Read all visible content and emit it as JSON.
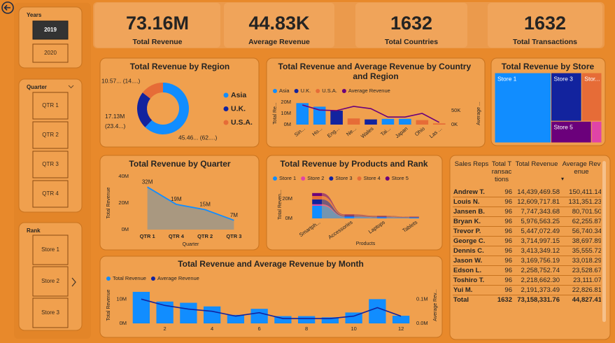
{
  "slicers": [
    {
      "title": "Years",
      "items": [
        "2019",
        "2020"
      ],
      "selected": "2019"
    },
    {
      "title": "Quarter",
      "items": [
        "QTR 1",
        "QTR 2",
        "QTR 3",
        "QTR 4"
      ]
    },
    {
      "title": "Rank",
      "items": [
        "Store 1",
        "Store 2",
        "Store 3"
      ]
    }
  ],
  "kpis": [
    {
      "value": "73.16M",
      "label": "Total Revenue"
    },
    {
      "value": "44.83K",
      "label": "Average Revenue"
    },
    {
      "value": "1632",
      "label": "Total Countries"
    },
    {
      "value": "1632",
      "label": "Total Transactions"
    }
  ],
  "chart_data": [
    {
      "type": "pie",
      "title": "Total Revenue by Region",
      "categories": [
        "Asia",
        "U.K.",
        "U.S.A."
      ],
      "values": [
        45.46,
        17.13,
        10.57
      ],
      "value_labels": [
        "45.46... (62....)",
        "17.13M (23.4...)",
        "10.57... (14....)"
      ],
      "colors": [
        "#118dff",
        "#12239e",
        "#e66c37"
      ],
      "donut": true,
      "legend": "right"
    },
    {
      "type": "combo",
      "title": "Total Revenue and Average Revenue by Country and Region",
      "categories": [
        "Sin...",
        "Ho...",
        "Eng...",
        "Ne...",
        "Wales",
        "Tai...",
        "Japan",
        "Ohio",
        "Las ..."
      ],
      "series": [
        {
          "name": "Asia",
          "color": "#118dff",
          "values": [
            19.2,
            16,
            null,
            null,
            null,
            5.1,
            5.16,
            null,
            null
          ]
        },
        {
          "name": "U.K.",
          "color": "#12239e",
          "values": [
            null,
            null,
            12.5,
            null,
            4.63,
            null,
            null,
            null,
            null
          ]
        },
        {
          "name": "U.S.A.",
          "color": "#e66c37",
          "values": [
            null,
            null,
            null,
            5.5,
            null,
            null,
            null,
            4,
            1.07
          ]
        },
        {
          "name": "Average Revenue",
          "color": "#6b007b",
          "values": [
            70,
            52,
            50,
            65,
            57,
            27,
            27,
            40,
            8
          ],
          "axis": "y2"
        }
      ],
      "ylim": [
        0,
        20
      ],
      "yticks": [
        {
          "value": 0,
          "label": "0M"
        },
        {
          "value": 10,
          "label": "10M"
        },
        {
          "value": 20,
          "label": "20M"
        }
      ],
      "y2lim": [
        0,
        80
      ],
      "y2ticks": [
        {
          "value": 0,
          "label": "0K"
        },
        {
          "value": 50,
          "label": "50K"
        }
      ],
      "y_label": "Total Re...",
      "y2_label": "Average ...",
      "legend": "top"
    },
    {
      "type": "treemap",
      "title": "Total Revenue by Store",
      "categories": [
        "Store 1",
        "Store 3",
        "Stor...",
        "Store 5",
        null
      ],
      "values": [
        38.5,
        14.5,
        9.5,
        8.5,
        2.16
      ],
      "colors": [
        "#118dff",
        "#12239e",
        "#e66c37",
        "#6b007b",
        "#e044a7"
      ]
    },
    {
      "type": "area",
      "title": "Total Revenue by Quarter",
      "categories": [
        "QTR 1",
        "QTR 4",
        "QTR 2",
        "QTR 3"
      ],
      "values": [
        32,
        19,
        15,
        7
      ],
      "value_labels": [
        "32M",
        "19M",
        "15M",
        "7M"
      ],
      "color": "#118dff",
      "fill": "#9c968a",
      "ylim": [
        0,
        40
      ],
      "yticks": [
        {
          "value": 0,
          "label": "0M"
        },
        {
          "value": 20,
          "label": "20M"
        },
        {
          "value": 40,
          "label": "40M"
        }
      ],
      "x_label": "Quarter",
      "y_label": "Total Revenue"
    },
    {
      "type": "ribbon",
      "title": "Total Revenue by Products and Rank",
      "categories": [
        "Smartph...",
        "Accessories",
        "Laptops",
        "Tablets"
      ],
      "series": [
        {
          "name": "Store 1",
          "color": "#118dff",
          "values": [
            13,
            1.8,
            1.1,
            0.8
          ]
        },
        {
          "name": "Store 2",
          "color": "#e044a7",
          "values": [
            1.5,
            0.3,
            0.2,
            0.1
          ]
        },
        {
          "name": "Store 3",
          "color": "#12239e",
          "values": [
            5,
            0.8,
            0.5,
            0.4
          ]
        },
        {
          "name": "Store 4",
          "color": "#e66c37",
          "values": [
            3.5,
            0.6,
            0.4,
            0.3
          ]
        },
        {
          "name": "Store 5",
          "color": "#6b007b",
          "values": [
            3,
            0.5,
            0.3,
            0.2
          ]
        }
      ],
      "ylim": [
        0,
        28
      ],
      "yticks": [
        {
          "value": 0,
          "label": "0M"
        },
        {
          "value": 20,
          "label": "20M"
        }
      ],
      "x_label": "Products",
      "y_label": "Total Reven...",
      "legend": "top"
    },
    {
      "type": "combo",
      "title": "Total Revenue and Average Revenue by Month",
      "x": [
        1,
        2,
        3,
        4,
        5,
        6,
        7,
        8,
        9,
        10,
        11,
        12
      ],
      "xlim": [
        0.5,
        12.5
      ],
      "xticks": [
        2,
        4,
        6,
        8,
        10,
        12
      ],
      "series": [
        {
          "name": "Total Revenue",
          "color": "#118dff",
          "values": [
            13,
            9,
            8.5,
            7,
            3.5,
            6,
            3,
            3,
            2.5,
            4.5,
            10,
            3.16
          ]
        },
        {
          "name": "Average Revenue",
          "color": "#12239e",
          "values": [
            0.1,
            0.074,
            0.059,
            0.05,
            0.03,
            0.044,
            0.02,
            0.02,
            0.02,
            0.03,
            0.065,
            0.03
          ],
          "axis": "y2"
        }
      ],
      "ylim": [
        0,
        15
      ],
      "yticks": [
        {
          "value": 0,
          "label": "0M"
        },
        {
          "value": 10,
          "label": "10M"
        }
      ],
      "y2lim": [
        0,
        0.15
      ],
      "y2ticks": [
        {
          "value": 0,
          "label": "0.0M"
        },
        {
          "value": 0.1,
          "label": "0.1M"
        }
      ],
      "y_label": "Total Revenue",
      "y2_label": "Average Rev...",
      "legend": "top"
    }
  ],
  "table": {
    "columns": [
      "Sales Reps",
      "Total Transactions",
      "Total Revenue",
      "Average Revenue"
    ],
    "rows": [
      [
        "Andrew T.",
        "96",
        "14,439,469.58",
        "150,411.14"
      ],
      [
        "Louis N.",
        "96",
        "12,609,717.81",
        "131,351.23"
      ],
      [
        "Jansen B.",
        "96",
        "7,747,343.68",
        "80,701.50"
      ],
      [
        "Bryan K.",
        "96",
        "5,976,563.25",
        "62,255.87"
      ],
      [
        "Trevor P.",
        "96",
        "5,447,072.49",
        "56,740.34"
      ],
      [
        "George C.",
        "96",
        "3,714,997.15",
        "38,697.89"
      ],
      [
        "Dennis C.",
        "96",
        "3,413,349.12",
        "35,555.72"
      ],
      [
        "Jason W.",
        "96",
        "3,169,756.19",
        "33,018.29"
      ],
      [
        "Edson L.",
        "96",
        "2,258,752.74",
        "23,528.67"
      ],
      [
        "Toshiro T.",
        "96",
        "2,218,662.30",
        "23,111.07"
      ],
      [
        "Yui M.",
        "96",
        "2,191,373.49",
        "22,826.81"
      ]
    ],
    "total": [
      "Total",
      "1632",
      "73,158,331.76",
      "44,827.41"
    ]
  }
}
